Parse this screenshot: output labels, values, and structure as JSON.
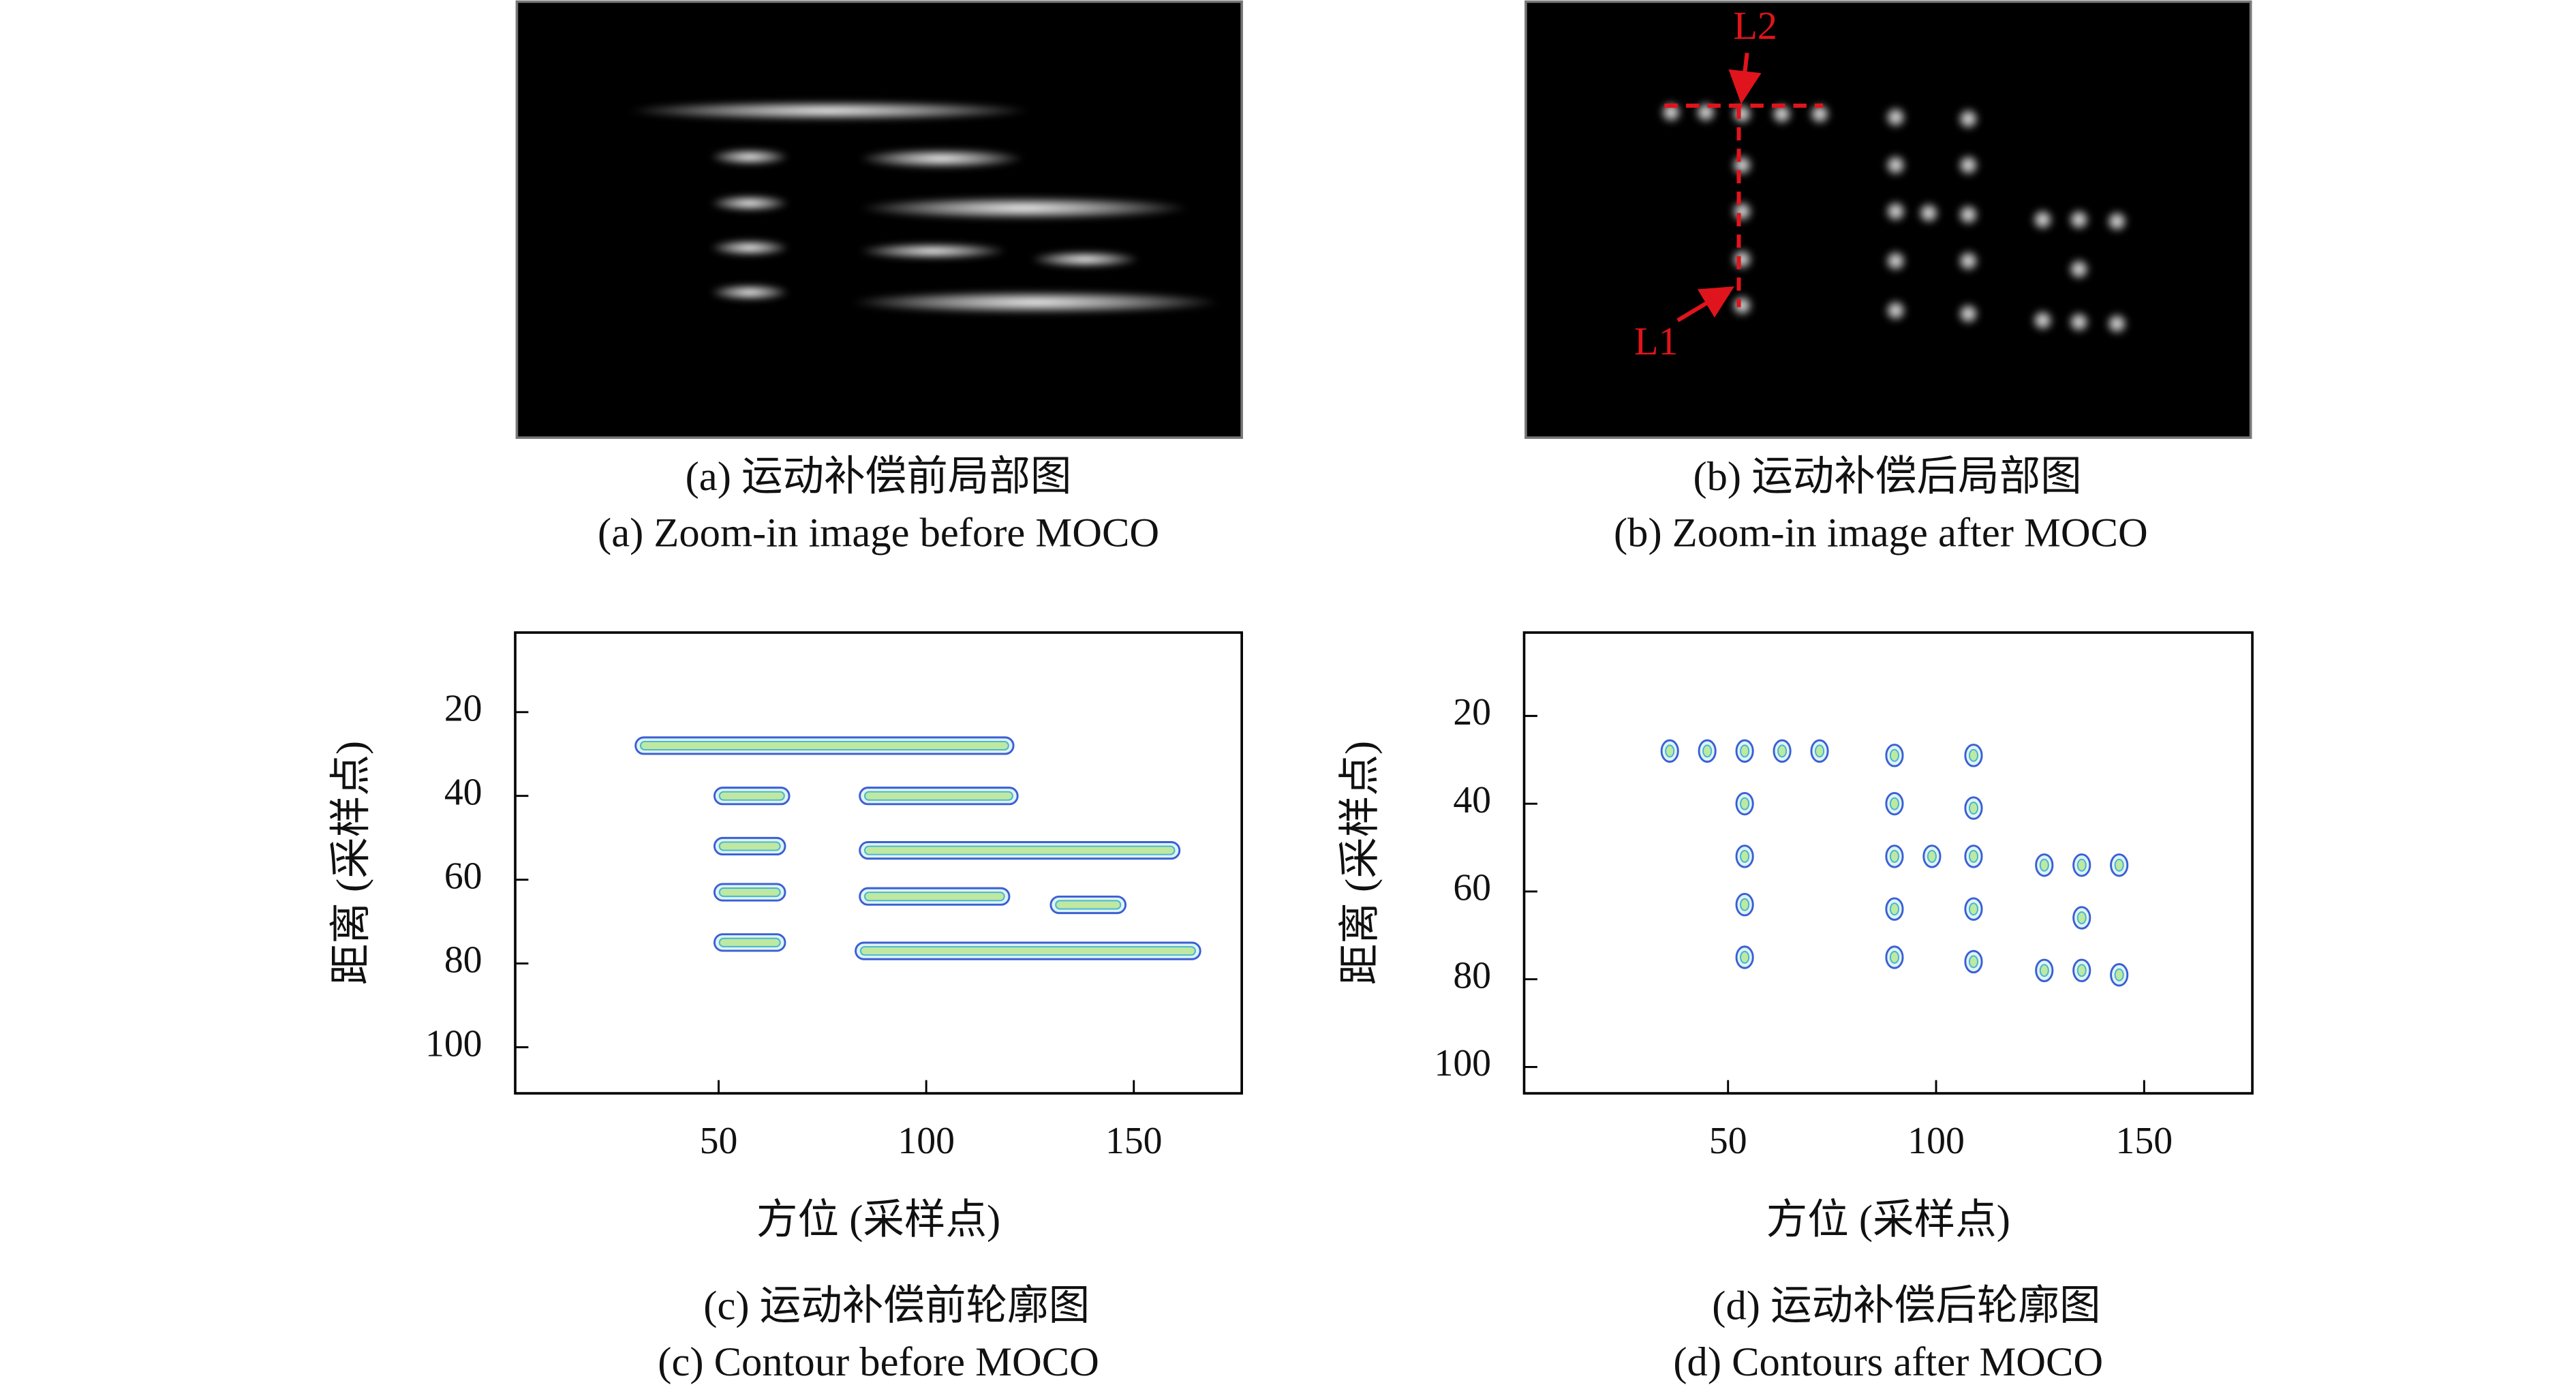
{
  "panels": [
    {
      "caption_cn": "(a) 运动补偿前局部图",
      "caption_en": "(a) Zoom-in image before MOCO"
    },
    {
      "caption_cn": "(b) 运动补偿后局部图",
      "caption_en": "(b) Zoom-in image after MOCO",
      "annotations": [
        "L2",
        "L1"
      ]
    }
  ],
  "chart_data": [
    {
      "type": "contour",
      "caption_cn": "(c) 运动补偿前轮廓图",
      "caption_en": "(c) Contour before MOCO",
      "x_label": "方位 (采样点)",
      "y_label": "距离 (采样点)",
      "xlim": [
        1,
        176
      ],
      "ylim": [
        1,
        111
      ],
      "y_inverted": true,
      "xticks": [
        50,
        100,
        150
      ],
      "yticks": [
        20,
        40,
        60,
        80,
        100
      ],
      "segments": [
        {
          "x0": 30,
          "x1": 121,
          "y": 28
        },
        {
          "x0": 49,
          "x1": 67,
          "y": 40
        },
        {
          "x0": 84,
          "x1": 122,
          "y": 40
        },
        {
          "x0": 49,
          "x1": 66,
          "y": 52
        },
        {
          "x0": 84,
          "x1": 161,
          "y": 53
        },
        {
          "x0": 49,
          "x1": 66,
          "y": 63
        },
        {
          "x0": 84,
          "x1": 120,
          "y": 64
        },
        {
          "x0": 130,
          "x1": 148,
          "y": 66
        },
        {
          "x0": 49,
          "x1": 66,
          "y": 75
        },
        {
          "x0": 83,
          "x1": 166,
          "y": 77
        }
      ]
    },
    {
      "type": "contour",
      "caption_cn": "(d) 运动补偿后轮廓图",
      "caption_en": "(d) Contours after MOCO",
      "x_label": "方位 (采样点)",
      "y_label": "距离 (采样点)",
      "xlim": [
        1,
        176
      ],
      "ylim": [
        1,
        106
      ],
      "y_inverted": true,
      "xticks": [
        50,
        100,
        150
      ],
      "yticks": [
        20,
        40,
        60,
        80,
        100
      ],
      "x": [
        36,
        45,
        54,
        63,
        72,
        90,
        90,
        90,
        90,
        90,
        109,
        109,
        109,
        109,
        109,
        99,
        54,
        54,
        54,
        54,
        126,
        135,
        144,
        135,
        126,
        135,
        144
      ],
      "y": [
        28,
        28,
        28,
        28,
        28,
        29,
        40,
        52,
        64,
        75,
        29,
        41,
        52,
        64,
        76,
        52,
        40,
        52,
        63,
        75,
        54,
        54,
        54,
        66,
        78,
        78,
        79
      ]
    }
  ]
}
